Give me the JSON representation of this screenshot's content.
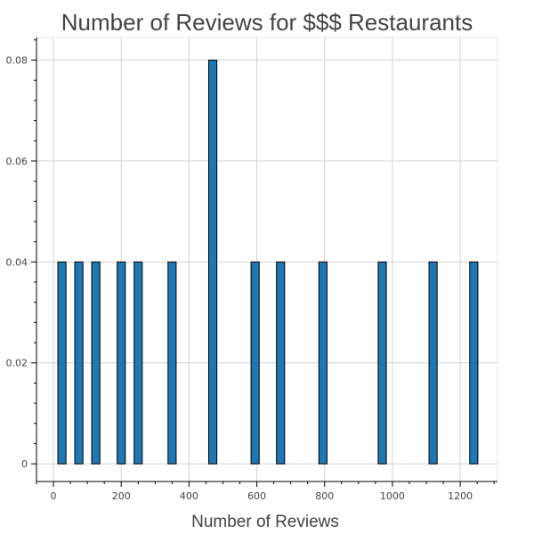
{
  "chart_data": {
    "type": "bar",
    "title": "Number of Reviews for $$$ Restaurants",
    "xlabel": "Number of Reviews",
    "ylabel": "",
    "xlim": [
      -50,
      1310
    ],
    "ylim": [
      -0.0035,
      0.0845
    ],
    "x_ticks": [
      0,
      200,
      400,
      600,
      800,
      1000,
      1200
    ],
    "x_tick_labels": [
      "0",
      "200",
      "400",
      "600",
      "800",
      "1000",
      "1200"
    ],
    "y_ticks": [
      0,
      0.02,
      0.04,
      0.06,
      0.08
    ],
    "y_tick_labels": [
      "0",
      "0.02",
      "0.04",
      "0.06",
      "0.08"
    ],
    "grid": true,
    "bar_width": 24,
    "bar_color": "#1f77b4",
    "x": [
      25,
      75,
      125,
      200,
      250,
      350,
      470,
      595,
      670,
      795,
      970,
      1120,
      1240
    ],
    "values": [
      0.04,
      0.04,
      0.04,
      0.04,
      0.04,
      0.04,
      0.08,
      0.04,
      0.04,
      0.04,
      0.04,
      0.04,
      0.04
    ]
  }
}
